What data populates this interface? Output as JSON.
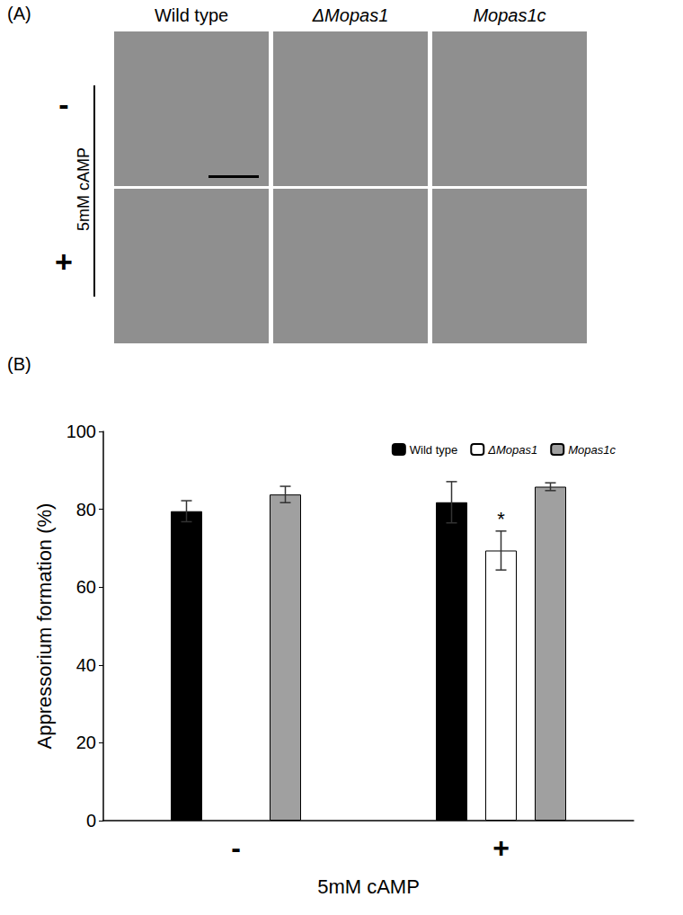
{
  "figure": {
    "panel_labels": [
      "(A)",
      "(B)"
    ],
    "panel_a": {
      "columns": [
        "Wild type",
        "ΔMopas1",
        "Mopas1c"
      ],
      "rows": [
        "-",
        "+"
      ],
      "row_axis_label": "5mM cAMP"
    }
  },
  "chart_data": {
    "type": "bar",
    "categories": [
      "-",
      "+"
    ],
    "x_label": "5mM cAMP",
    "y_label": "Appressorium formation (%)",
    "series": [
      {
        "name": "Wild type",
        "color": "#000000",
        "values": [
          79.5,
          81.8
        ],
        "errors": [
          2.7,
          5.3
        ]
      },
      {
        "name": "ΔMopas1",
        "color": "#ffffff",
        "values": [
          null,
          69.4
        ],
        "errors": [
          null,
          5.0
        ]
      },
      {
        "name": "Mopas1c",
        "color": "#a0a0a0",
        "values": [
          83.8,
          85.8
        ],
        "errors": [
          2.1,
          1.0
        ]
      }
    ],
    "annotations": [
      {
        "text": "*",
        "category": "+",
        "series": "ΔMopas1"
      }
    ],
    "ylim": [
      0,
      100
    ],
    "yticks": [
      0,
      20,
      40,
      60,
      80,
      100
    ],
    "legend": "top-right",
    "grid": false
  }
}
